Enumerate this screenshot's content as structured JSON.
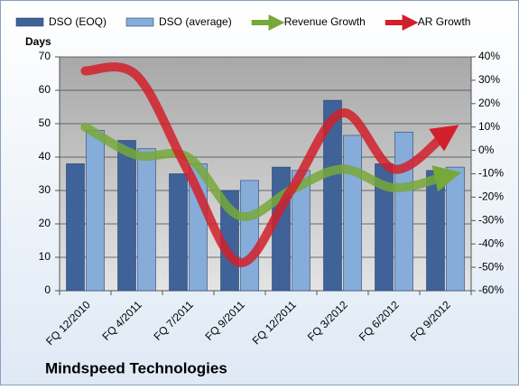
{
  "chart_data": {
    "type": "bar_line",
    "title": "Mindspeed Technologies",
    "y_label": "Days",
    "categories": [
      "FQ 12/2010",
      "FQ 4/2011",
      "FQ 7/2011",
      "FQ 9/2011",
      "FQ 12/2011",
      "FQ 3/2012",
      "FQ 6/2012",
      "FQ 9/2012"
    ],
    "series": [
      {
        "name": "DSO (EOQ)",
        "color": "#3f6298",
        "kind": "bar",
        "values": [
          38,
          45,
          35,
          30,
          37,
          57,
          38,
          36
        ]
      },
      {
        "name": "DSO (average)",
        "color": "#86acd9",
        "kind": "bar",
        "values": [
          48,
          42.5,
          38,
          33,
          36,
          46.5,
          47.5,
          37
        ]
      },
      {
        "name": "Revenue Growth",
        "color": "#77a83a",
        "kind": "line",
        "axis": "y2",
        "values": [
          10,
          -2,
          -3,
          -28,
          -17,
          -8,
          -16,
          -11
        ]
      },
      {
        "name": "AR Growth",
        "color": "#d2202a",
        "kind": "line",
        "axis": "y2",
        "values": [
          34,
          32,
          -9,
          -48,
          -17,
          16,
          -8,
          7
        ]
      }
    ],
    "ylim": [
      0,
      70
    ],
    "yticks": [
      0,
      10,
      20,
      30,
      40,
      50,
      60,
      70
    ],
    "y2lim": [
      -60,
      40
    ],
    "y2ticks": [
      {
        "value": -60,
        "label": "-60%"
      },
      {
        "value": -50,
        "label": "-50%"
      },
      {
        "value": -40,
        "label": "-40%"
      },
      {
        "value": -30,
        "label": "-30%"
      },
      {
        "value": -20,
        "label": "-20%"
      },
      {
        "value": -10,
        "label": "-10%"
      },
      {
        "value": 0,
        "label": "0%"
      },
      {
        "value": 10,
        "label": "10%"
      },
      {
        "value": 20,
        "label": "20%"
      },
      {
        "value": 30,
        "label": "30%"
      },
      {
        "value": 40,
        "label": "40%"
      }
    ],
    "grid": true,
    "legend": "top"
  }
}
